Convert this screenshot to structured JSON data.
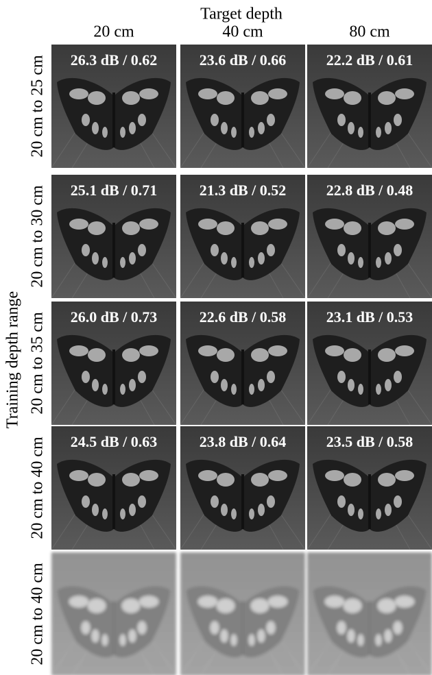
{
  "header": {
    "title": "Target depth",
    "columns": [
      "20 cm",
      "40 cm",
      "80 cm"
    ]
  },
  "side_label": "Training depth range",
  "rows": [
    {
      "label": "20 cm to 25 cm",
      "cells": [
        "26.3 dB / 0.62",
        "23.6 dB / 0.66",
        "22.2 dB / 0.61"
      ]
    },
    {
      "label": "20 cm to 30 cm",
      "cells": [
        "25.1 dB / 0.71",
        "21.3 dB / 0.52",
        "22.8 dB / 0.48"
      ]
    },
    {
      "label": "20 cm to 35 cm",
      "cells": [
        "26.0 dB / 0.73",
        "22.6 dB / 0.58",
        "23.1 dB / 0.53"
      ]
    },
    {
      "label": "20 cm to 40 cm",
      "cells": [
        "24.5 dB / 0.63",
        "23.8 dB / 0.64",
        "23.5 dB / 0.58"
      ]
    },
    {
      "label": "20 cm to 40 cm"
    }
  ]
}
